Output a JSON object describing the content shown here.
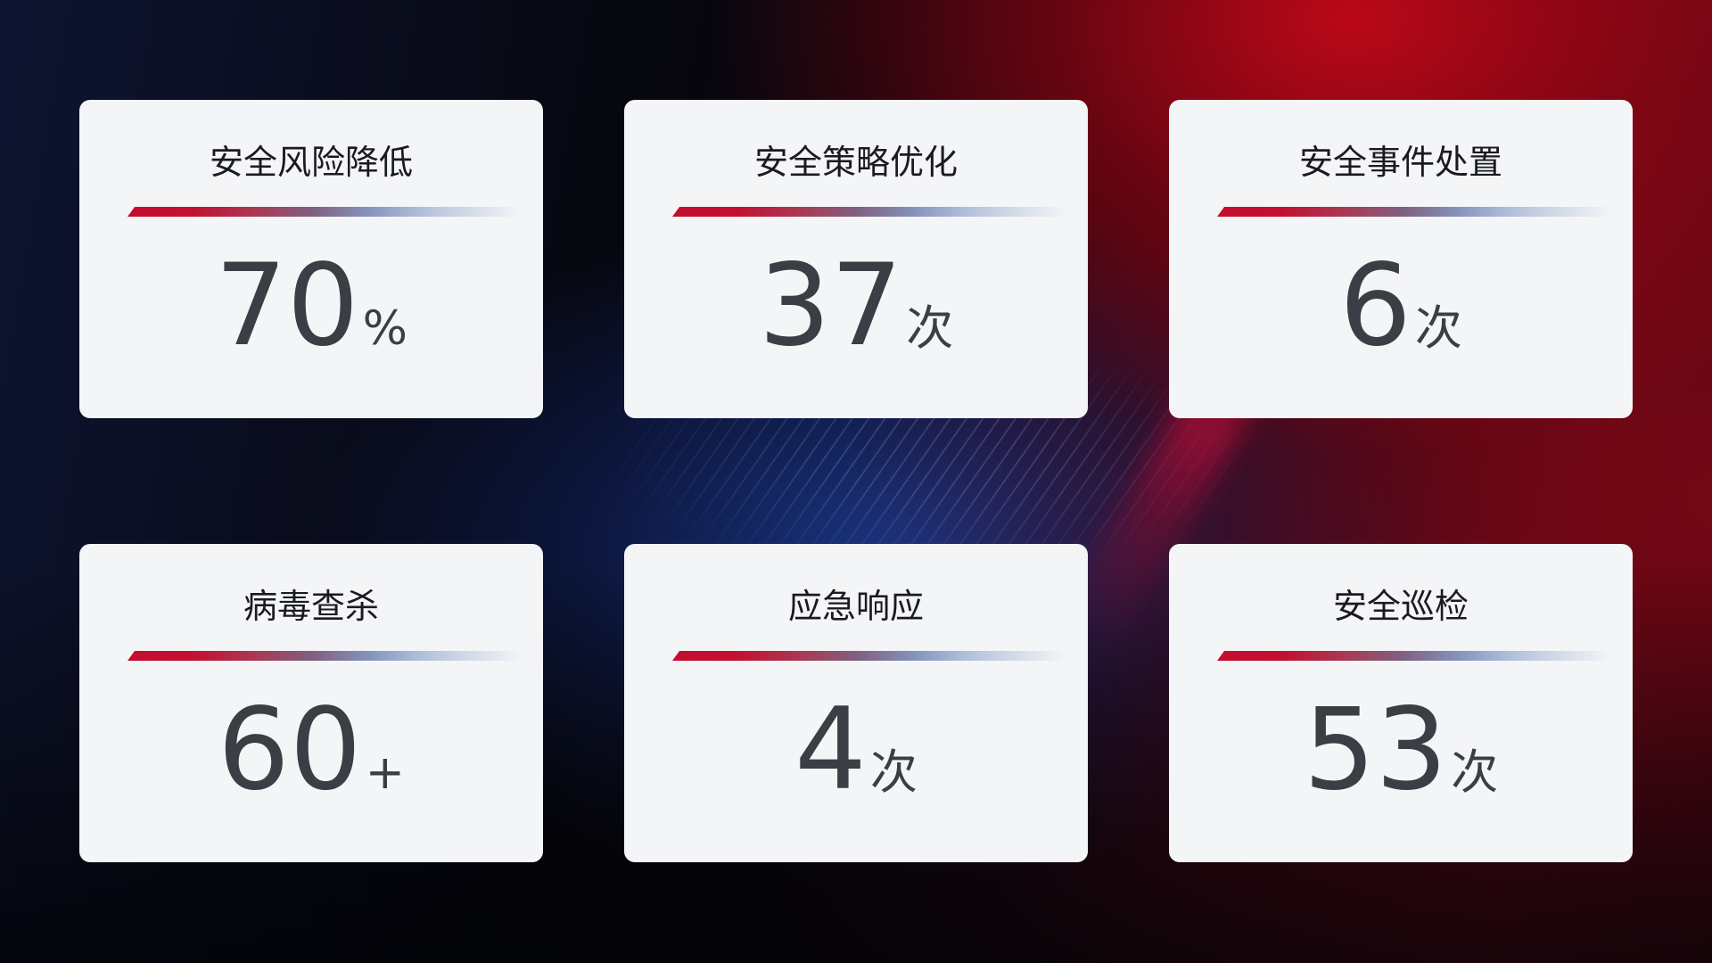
{
  "cards": [
    {
      "title": "安全风险降低",
      "value": "70",
      "unit": "%"
    },
    {
      "title": "安全策略优化",
      "value": "37",
      "unit": "次"
    },
    {
      "title": "安全事件处置",
      "value": "6",
      "unit": "次"
    },
    {
      "title": "病毒查杀",
      "value": "60",
      "unit": "+"
    },
    {
      "title": "应急响应",
      "value": "4",
      "unit": "次"
    },
    {
      "title": "安全巡检",
      "value": "53",
      "unit": "次"
    }
  ],
  "colors": {
    "card_background": "#f4f5f7",
    "title_text": "#1a1b1e",
    "value_text": "#3b3e44",
    "divider_red": "#c30e2f",
    "divider_blue": "#aebdd8",
    "background_navy": "#0d1531",
    "background_red": "#b50717",
    "background_blue_glow": "#1b398e"
  }
}
